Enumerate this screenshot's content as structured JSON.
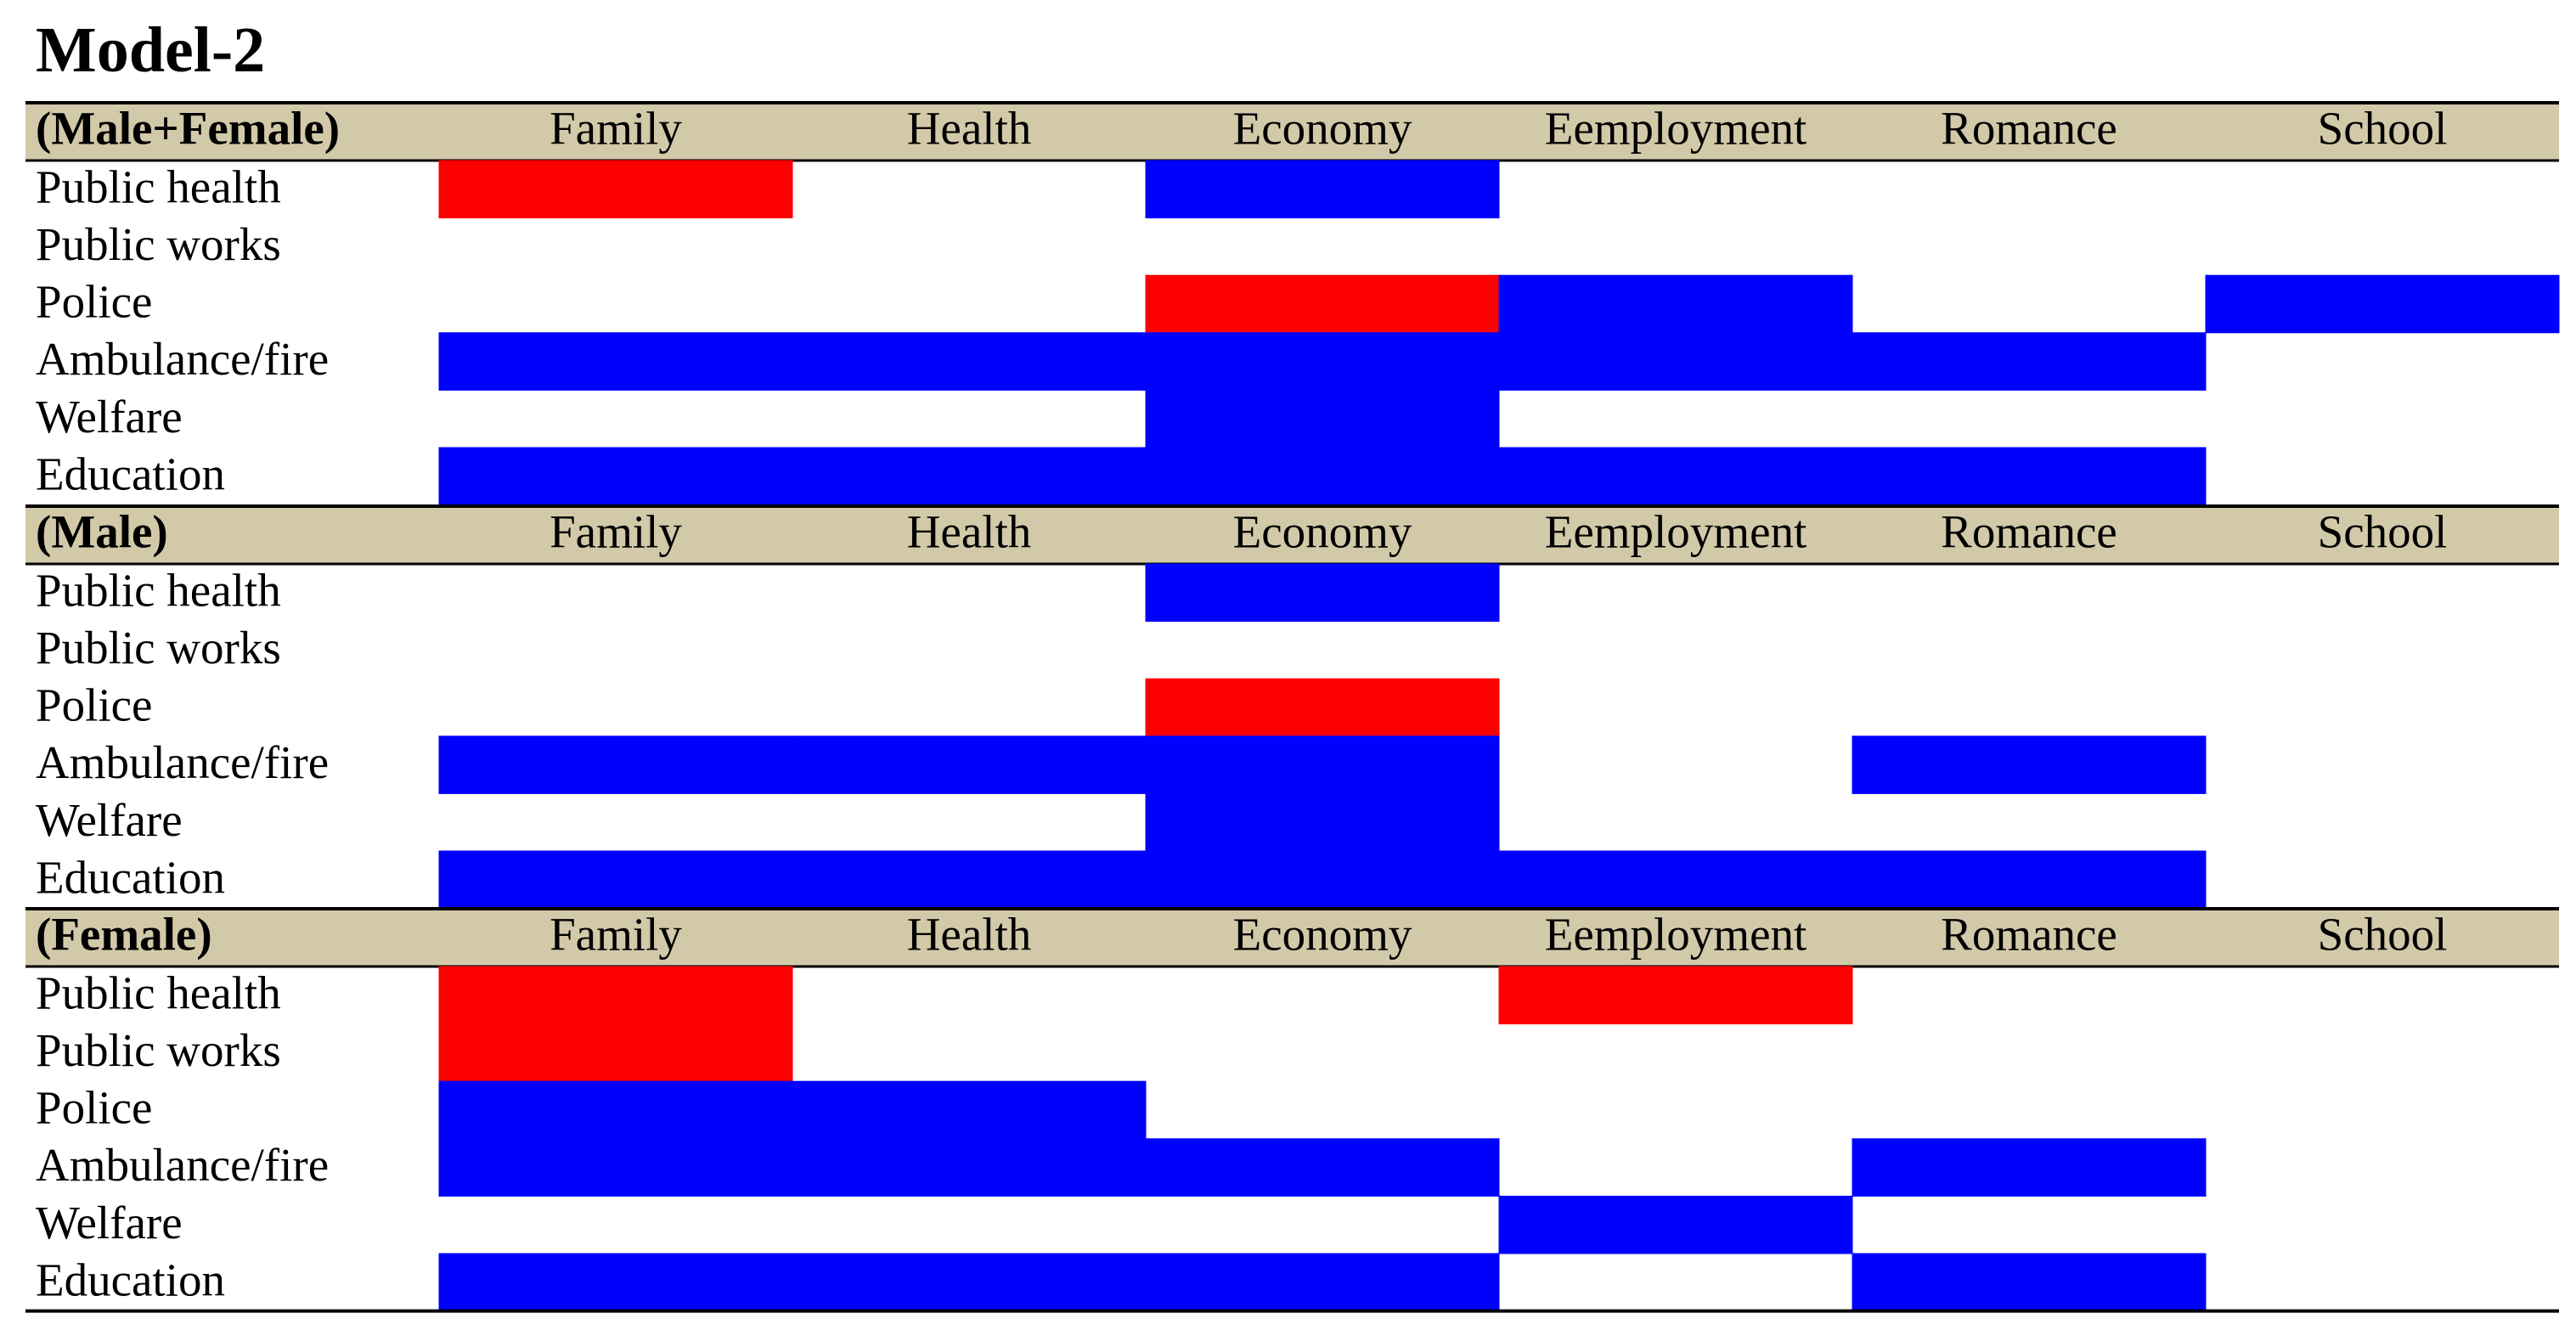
{
  "title": "Model-2",
  "chart_data": {
    "type": "heatmap",
    "title": "Model-2",
    "columns": [
      "Family",
      "Health",
      "Economy",
      "Eemployment",
      "Romance",
      "School"
    ],
    "rows": [
      "Public health",
      "Public works",
      "Police",
      "Ambulance/fire",
      "Welfare",
      "Education"
    ],
    "legend": {
      "0": "none (white)",
      "1": "blue",
      "-1": "red"
    },
    "colors": {
      "positive": "#0000ff",
      "negative": "#ff0000",
      "none": "#ffffff",
      "header_band": "#d2c9a9",
      "rule": "#000000"
    },
    "groups": [
      {
        "label": "(Male+Female)",
        "cells": [
          [
            -1,
            0,
            1,
            0,
            0,
            0
          ],
          [
            0,
            0,
            0,
            0,
            0,
            0
          ],
          [
            0,
            0,
            -1,
            1,
            0,
            1
          ],
          [
            1,
            1,
            1,
            1,
            1,
            0
          ],
          [
            0,
            0,
            1,
            0,
            0,
            0
          ],
          [
            1,
            1,
            1,
            1,
            1,
            0
          ]
        ]
      },
      {
        "label": "(Male)",
        "cells": [
          [
            0,
            0,
            1,
            0,
            0,
            0
          ],
          [
            0,
            0,
            0,
            0,
            0,
            0
          ],
          [
            0,
            0,
            -1,
            0,
            0,
            0
          ],
          [
            1,
            1,
            1,
            0,
            1,
            0
          ],
          [
            0,
            0,
            1,
            0,
            0,
            0
          ],
          [
            1,
            1,
            1,
            1,
            1,
            0
          ]
        ]
      },
      {
        "label": "(Female)",
        "cells": [
          [
            -1,
            0,
            0,
            -1,
            0,
            0
          ],
          [
            -1,
            0,
            0,
            0,
            0,
            0
          ],
          [
            1,
            1,
            0,
            0,
            0,
            0
          ],
          [
            1,
            1,
            1,
            0,
            1,
            0
          ],
          [
            0,
            0,
            0,
            1,
            0,
            0
          ],
          [
            1,
            1,
            1,
            0,
            1,
            0
          ]
        ]
      }
    ]
  }
}
